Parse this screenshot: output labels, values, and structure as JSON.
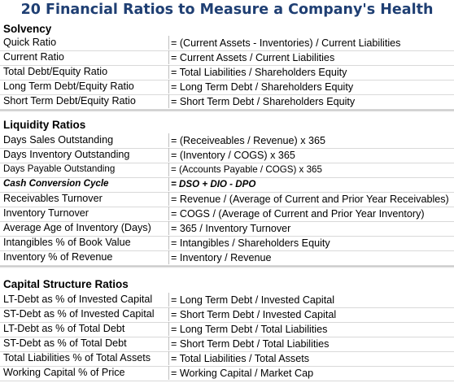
{
  "title": "20 Financial Ratios to Measure a Company's Health",
  "sections": [
    {
      "heading": "Solvency",
      "rows": [
        {
          "name": "Quick Ratio",
          "formula": "= (Current Assets - Inventories) / Current Liabilities"
        },
        {
          "name": "Current Ratio",
          "formula": "= Current Assets / Current Liabilities"
        },
        {
          "name": "Total Debt/Equity Ratio",
          "formula": "= Total Liabilities / Shareholders Equity"
        },
        {
          "name": "Long Term Debt/Equity Ratio",
          "formula": "= Long Term Debt / Shareholders Equity"
        },
        {
          "name": "Short Term Debt/Equity Ratio",
          "formula": "= Short Term Debt / Shareholders Equity"
        }
      ]
    },
    {
      "heading": "Liquidity Ratios",
      "rows": [
        {
          "name": "Days Sales Outstanding",
          "formula": "= (Receiveables / Revenue) x 365"
        },
        {
          "name": "Days Inventory Outstanding",
          "formula": "= (Inventory / COGS) x 365"
        },
        {
          "name": "Days Payable Outstanding",
          "formula": "= (Accounts Payable / COGS) x 365"
        },
        {
          "name": "Cash Conversion Cycle",
          "formula": "= DSO + DIO - DPO"
        },
        {
          "name": "Receivables Turnover",
          "formula": "= Revenue / (Average of Current and Prior Year Receivables)"
        },
        {
          "name": "Inventory Turnover",
          "formula": "= COGS / (Average of Current and Prior Year Inventory)"
        },
        {
          "name": "Average Age of Inventory (Days)",
          "formula": "= 365 / Inventory Turnover"
        },
        {
          "name": "Intangibles % of Book Value",
          "formula": "= Intangibles / Shareholders Equity"
        },
        {
          "name": "Inventory % of Revenue",
          "formula": "= Inventory / Revenue"
        }
      ]
    },
    {
      "heading": "Capital Structure Ratios",
      "rows": [
        {
          "name": "LT-Debt as % of Invested Capital",
          "formula": "= Long Term Debt / Invested Capital"
        },
        {
          "name": "ST-Debt as % of Invested Capital",
          "formula": "= Short Term Debt / Invested Capital"
        },
        {
          "name": "LT-Debt as % of Total Debt",
          "formula": "= Long Term Debt / Total Liabilities"
        },
        {
          "name": "ST-Debt as % of Total Debt",
          "formula": "= Short Term Debt / Total Liabilities"
        },
        {
          "name": "Total Liabilities % of Total Assets",
          "formula": "= Total Liabilities / Total Assets"
        },
        {
          "name": "Working Capital % of Price",
          "formula": "= Working Capital / Market Cap"
        }
      ]
    }
  ],
  "colors": {
    "title": "#1f3f73",
    "row_border": "#d9d9d9"
  }
}
